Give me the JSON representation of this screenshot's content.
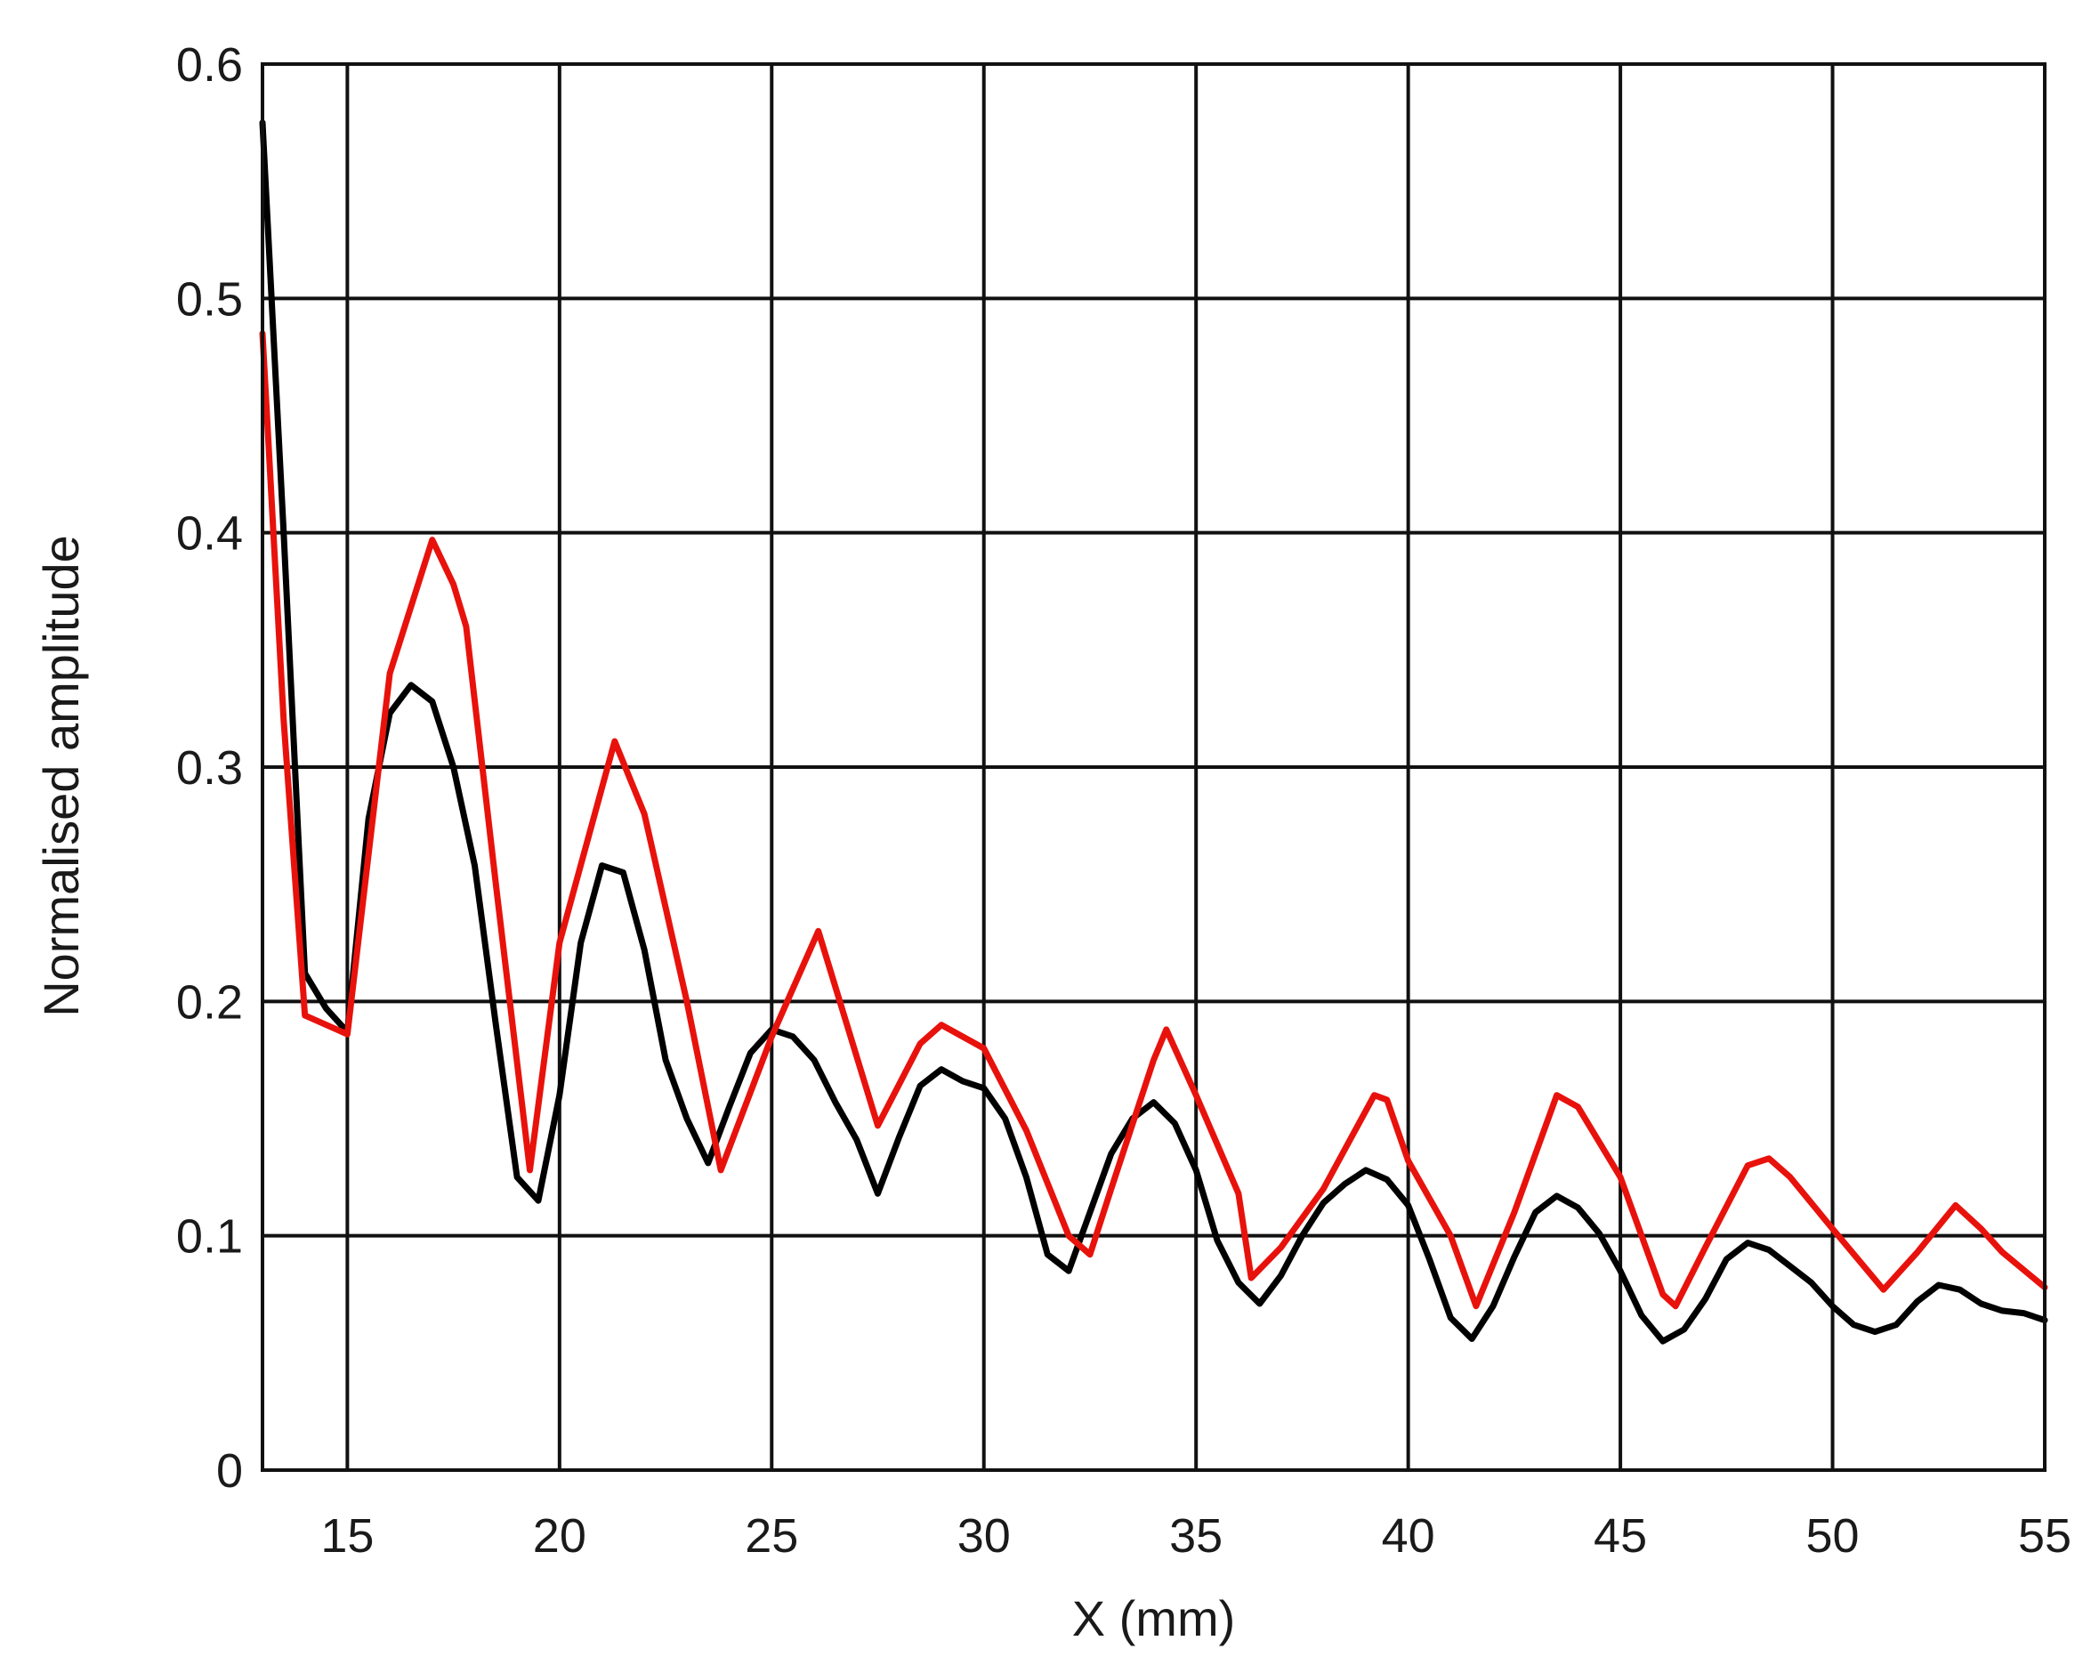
{
  "chart_data": {
    "type": "line",
    "title": "",
    "xlabel": "X (mm)",
    "ylabel": "Normalised amplitude",
    "xlim": [
      13,
      55
    ],
    "ylim": [
      0,
      0.6
    ],
    "x_ticks": [
      15,
      20,
      25,
      30,
      35,
      40,
      45,
      50,
      55
    ],
    "x_tick_labels": [
      "15",
      "20",
      "25",
      "30",
      "35",
      "40",
      "45",
      "50",
      "55"
    ],
    "y_ticks": [
      0,
      0.1,
      0.2,
      0.3,
      0.4,
      0.5,
      0.6
    ],
    "y_tick_labels": [
      "0",
      "0.1",
      "0.2",
      "0.3",
      "0.4",
      "0.5",
      "0.6"
    ],
    "grid": true,
    "legend": "none",
    "series": [
      {
        "color": "#000000",
        "x": [
          13.0,
          13.5,
          14.0,
          14.5,
          15.0,
          15.5,
          16.0,
          16.5,
          17.0,
          17.5,
          18.0,
          18.5,
          19.0,
          19.5,
          20.0,
          20.5,
          21.0,
          21.5,
          22.0,
          22.5,
          23.0,
          23.5,
          24.0,
          24.5,
          25.0,
          25.5,
          26.0,
          26.5,
          27.0,
          27.5,
          28.0,
          28.5,
          29.0,
          29.5,
          30.0,
          30.5,
          31.0,
          31.5,
          32.0,
          32.5,
          33.0,
          33.5,
          34.0,
          34.5,
          35.0,
          35.5,
          36.0,
          36.5,
          37.0,
          37.5,
          38.0,
          38.5,
          39.0,
          39.5,
          40.0,
          40.5,
          41.0,
          41.5,
          42.0,
          42.5,
          43.0,
          43.5,
          44.0,
          44.5,
          45.0,
          45.5,
          46.0,
          46.5,
          47.0,
          47.5,
          48.0,
          48.5,
          49.0,
          49.5,
          50.0,
          50.5,
          51.0,
          51.5,
          52.0,
          52.5,
          53.0,
          53.5,
          54.0,
          54.5,
          55.0
        ],
        "y": [
          0.575,
          0.4,
          0.212,
          0.197,
          0.187,
          0.278,
          0.323,
          0.335,
          0.328,
          0.3,
          0.258,
          0.19,
          0.125,
          0.115,
          0.16,
          0.225,
          0.258,
          0.255,
          0.222,
          0.175,
          0.15,
          0.131,
          0.155,
          0.178,
          0.188,
          0.185,
          0.175,
          0.157,
          0.141,
          0.118,
          0.142,
          0.164,
          0.171,
          0.166,
          0.163,
          0.15,
          0.125,
          0.092,
          0.085,
          0.11,
          0.135,
          0.15,
          0.157,
          0.148,
          0.128,
          0.098,
          0.08,
          0.071,
          0.083,
          0.1,
          0.114,
          0.122,
          0.128,
          0.124,
          0.113,
          0.09,
          0.065,
          0.056,
          0.07,
          0.091,
          0.11,
          0.117,
          0.112,
          0.101,
          0.085,
          0.066,
          0.055,
          0.06,
          0.073,
          0.09,
          0.097,
          0.094,
          0.087,
          0.08,
          0.07,
          0.062,
          0.059,
          0.062,
          0.072,
          0.079,
          0.077,
          0.071,
          0.068,
          0.067,
          0.064
        ]
      },
      {
        "color": "#e8120c",
        "x": [
          13.0,
          13.5,
          14.0,
          15.0,
          16.0,
          17.0,
          17.5,
          17.8,
          18.5,
          19.3,
          20.0,
          21.3,
          22.0,
          22.5,
          23.0,
          23.8,
          25.0,
          26.1,
          27.5,
          28.5,
          29.0,
          30.0,
          31.0,
          32.0,
          32.5,
          33.0,
          34.0,
          34.3,
          35.0,
          36.0,
          36.3,
          37.0,
          38.0,
          39.2,
          39.5,
          40.0,
          41.0,
          41.6,
          42.5,
          43.5,
          44.0,
          45.0,
          46.0,
          46.3,
          47.0,
          48.0,
          48.5,
          49.0,
          50.0,
          51.2,
          52.0,
          52.9,
          53.5,
          54.0,
          55.0
        ],
        "y": [
          0.485,
          0.32,
          0.194,
          0.186,
          0.34,
          0.397,
          0.378,
          0.36,
          0.25,
          0.128,
          0.225,
          0.311,
          0.28,
          0.24,
          0.2,
          0.128,
          0.185,
          0.23,
          0.147,
          0.182,
          0.19,
          0.18,
          0.145,
          0.1,
          0.092,
          0.12,
          0.175,
          0.188,
          0.16,
          0.118,
          0.082,
          0.095,
          0.12,
          0.16,
          0.158,
          0.132,
          0.1,
          0.07,
          0.11,
          0.16,
          0.155,
          0.125,
          0.075,
          0.07,
          0.095,
          0.13,
          0.133,
          0.125,
          0.103,
          0.077,
          0.093,
          0.113,
          0.103,
          0.093,
          0.078
        ]
      }
    ]
  }
}
